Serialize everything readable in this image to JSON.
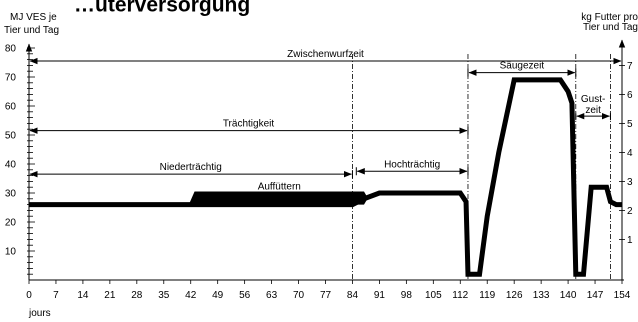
{
  "chart_data": {
    "type": "line",
    "title": "…uterversorgung",
    "y_left_label": [
      "MJ VES je",
      "Tier und Tag"
    ],
    "y_right_label": [
      "kg Futter pro",
      "Tier und Tag"
    ],
    "xlabel": "jours",
    "xlim": [
      0,
      154
    ],
    "ylim": [
      0,
      80
    ],
    "x_ticks": [
      0,
      7,
      14,
      21,
      28,
      35,
      42,
      49,
      56,
      63,
      70,
      77,
      84,
      91,
      98,
      105,
      112,
      119,
      126,
      133,
      140,
      147,
      154
    ],
    "y_ticks_labeled": [
      10,
      20,
      30,
      40,
      50,
      60,
      70,
      80
    ],
    "right_ticks": [
      "1",
      "2",
      "3",
      "4",
      "5",
      "6",
      "7"
    ],
    "grid": false,
    "series": [
      {
        "color": "#000000",
        "x": [
          0,
          42,
          84,
          87,
          91,
          98,
          112,
          113.5,
          114,
          117,
          119,
          122,
          126,
          130,
          134,
          138,
          140,
          141,
          142,
          144,
          146,
          150,
          151,
          152.5,
          154
        ],
        "y": [
          26,
          26,
          26,
          28,
          30,
          30,
          30,
          27,
          2,
          2,
          22,
          44,
          69,
          69,
          69,
          69,
          65,
          61,
          2,
          2,
          32,
          32,
          27,
          26,
          26
        ]
      }
    ],
    "band": {
      "label": "Auffüttern",
      "x": [
        43,
        87
      ],
      "y_low": 26,
      "y_high": 30.5,
      "color": "#000000"
    },
    "phases": [
      {
        "label": "Zwischenwurfzeit",
        "x_start": 0,
        "x_end": 154,
        "y": 75.5
      },
      {
        "label": "Trächtigkeit",
        "x_start": 0,
        "x_end": 114,
        "y": 51.5
      },
      {
        "label": "Niederträchtig",
        "x_start": 0,
        "x_end": 84,
        "y": 36.5
      },
      {
        "label": "Hochträchtig",
        "x_start": 85,
        "x_end": 114,
        "y": 37.5
      },
      {
        "label": "Säugezeit",
        "x_start": 114,
        "x_end": 142,
        "y": 71.5
      },
      {
        "label": "Gust-",
        "label2": "zeit",
        "x_start": 142,
        "x_end": 151,
        "y": 56.5
      }
    ],
    "phase_dividers": [
      84,
      114,
      142,
      151
    ]
  }
}
